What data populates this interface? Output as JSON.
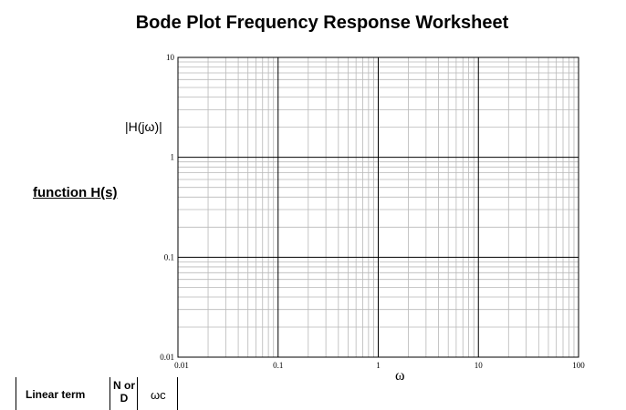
{
  "header": {
    "title": "Bode Plot Frequency Response Worksheet"
  },
  "side": {
    "function_label": "function H(s)"
  },
  "table": {
    "col1": "Linear term",
    "col2_line1": "N or",
    "col2_line2": "D",
    "col3": "ωc"
  },
  "chart_data": {
    "type": "line",
    "title": "",
    "xlabel": "ω",
    "ylabel": "|H(jω)|",
    "x_scale": "log",
    "y_scale": "log",
    "xlim": [
      0.01,
      100
    ],
    "ylim": [
      0.01,
      10
    ],
    "x_ticks": [
      "0.01",
      "0.1",
      "1",
      "10",
      "100"
    ],
    "y_ticks": [
      "0.01",
      "0.1",
      "1",
      "10"
    ],
    "grid": true,
    "series": []
  }
}
